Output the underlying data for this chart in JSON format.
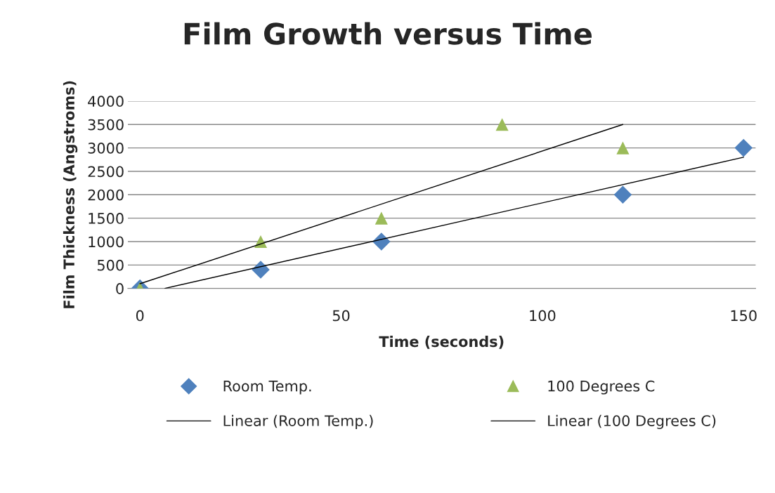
{
  "chart_data": {
    "type": "scatter",
    "title": "Film Growth versus Time",
    "xlabel": "Time (seconds)",
    "ylabel": "Film Thickness (Angstroms)",
    "series": [
      {
        "name": "Room Temp.",
        "color": "#4f81bd",
        "marker": "diamond",
        "x": [
          0,
          30,
          60,
          120,
          150
        ],
        "values": [
          0,
          400,
          1000,
          2000,
          3000
        ]
      },
      {
        "name": "100 Degrees C",
        "color": "#9bbb59",
        "marker": "triangle",
        "x": [
          0,
          30,
          60,
          90,
          120
        ],
        "values": [
          0,
          1000,
          1500,
          3500,
          3000
        ]
      },
      {
        "name": "Linear (Room Temp.)",
        "type": "line",
        "color": "#000000",
        "marker": "none",
        "x": [
          6.2,
          150
        ],
        "values": [
          0,
          2800
        ]
      },
      {
        "name": "Linear (100 Degrees C)",
        "type": "line",
        "color": "#000000",
        "marker": "none",
        "x": [
          0,
          120
        ],
        "values": [
          100,
          3500
        ]
      }
    ],
    "xlim": [
      -3,
      153
    ],
    "xticks": [
      0,
      50,
      100,
      150
    ],
    "ylim": [
      0,
      4000
    ],
    "yticks": [
      0,
      500,
      1000,
      1500,
      2000,
      2500,
      3000,
      3500,
      4000
    ],
    "grid": "y",
    "legend": "bottom"
  }
}
